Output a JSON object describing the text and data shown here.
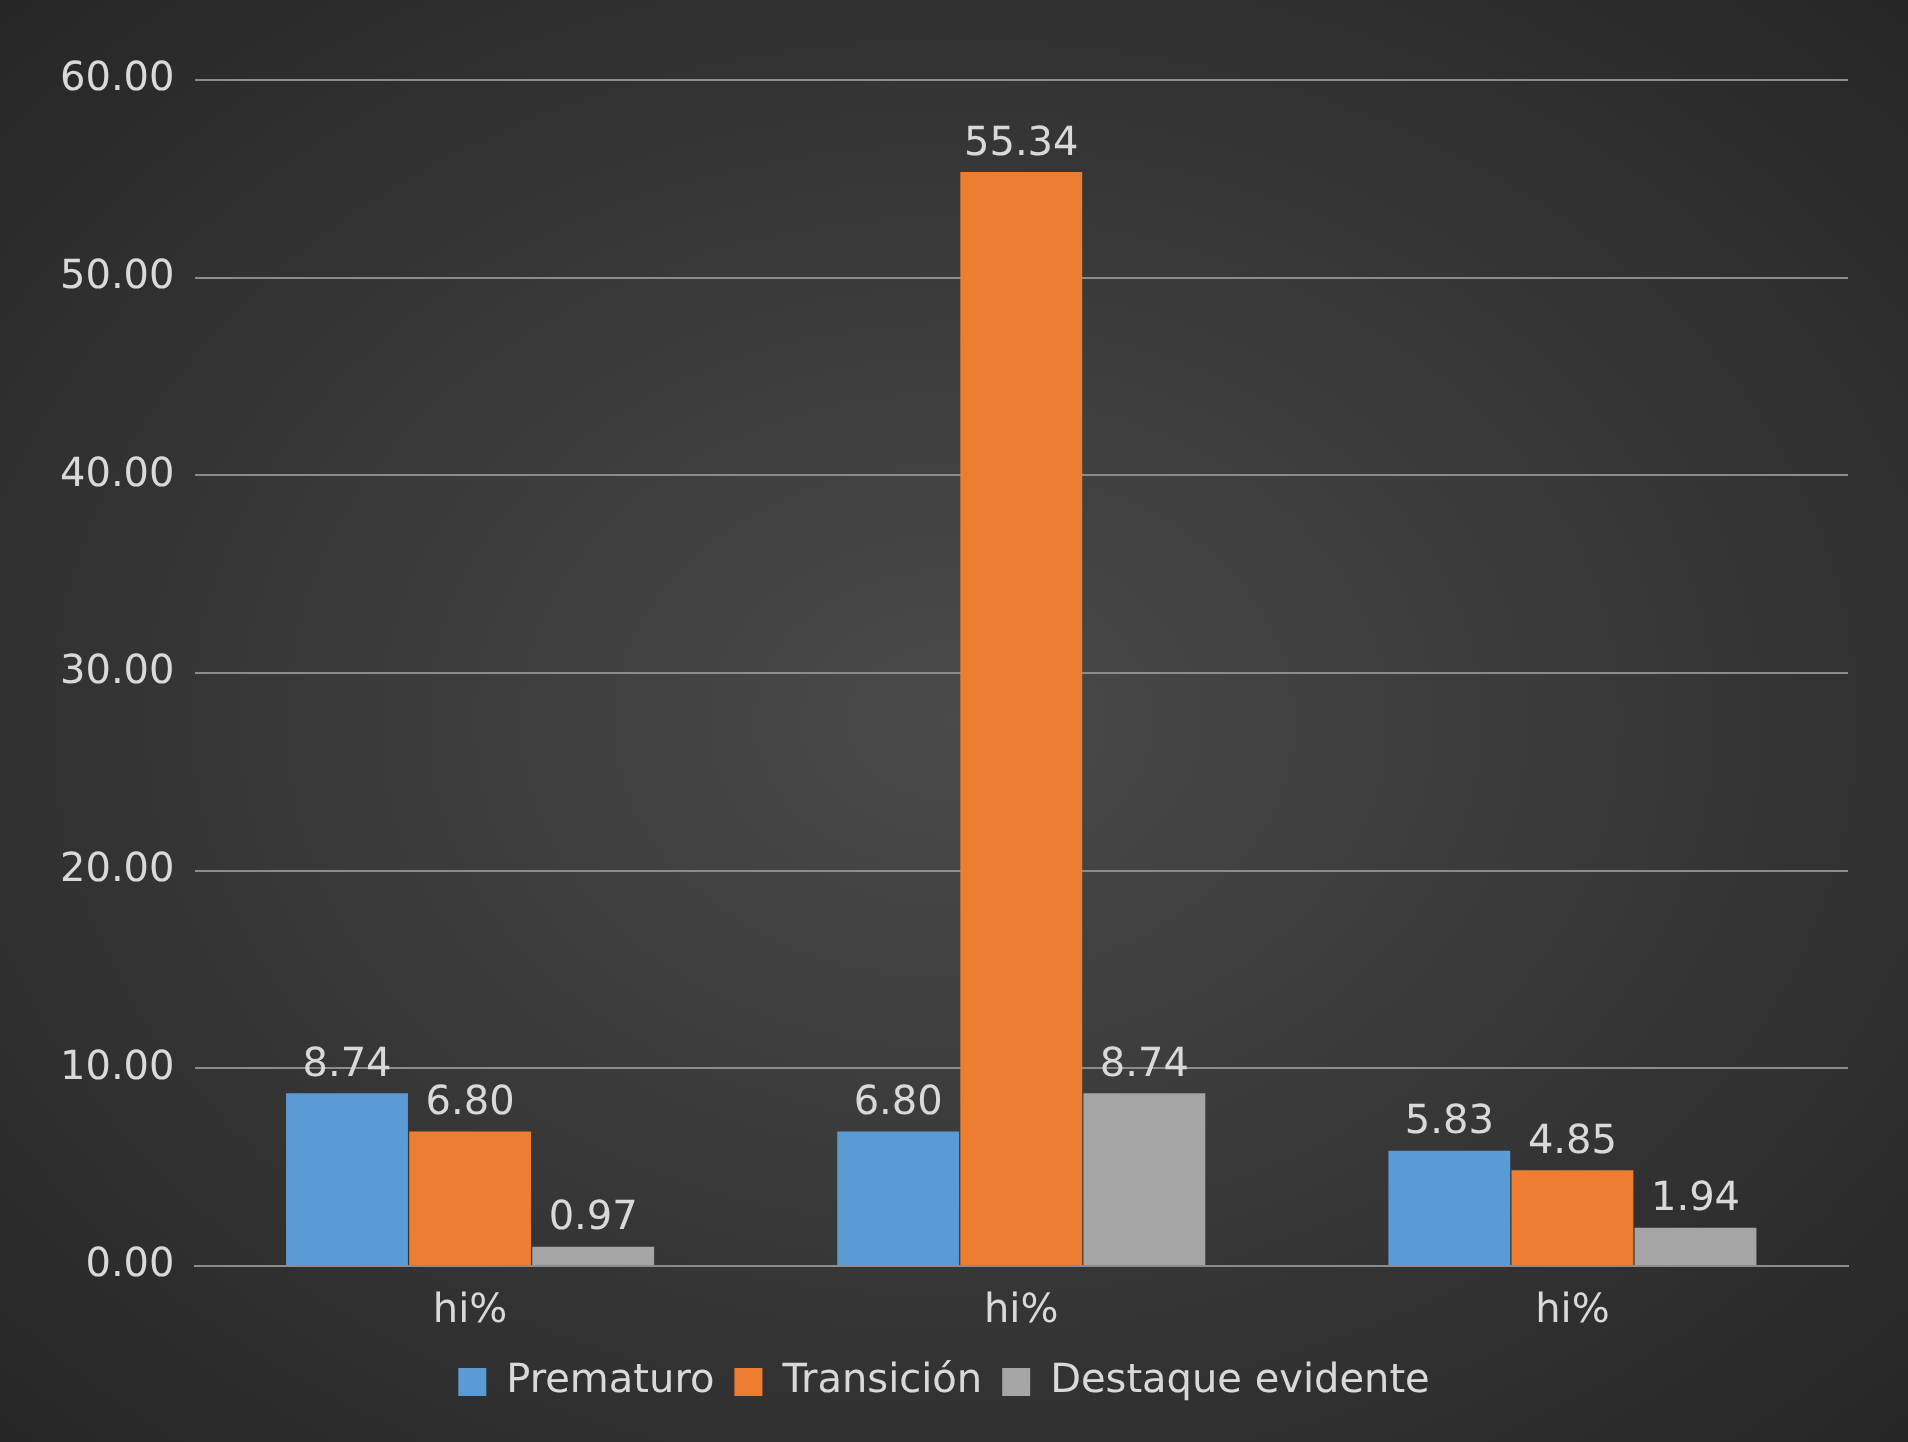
{
  "chart_data": {
    "type": "bar",
    "categories": [
      "hi%",
      "hi%",
      "hi%"
    ],
    "series": [
      {
        "name": "Prematuro",
        "color": "#5b9bd5",
        "values": [
          8.74,
          6.8,
          5.83
        ],
        "value_labels": [
          "8.74",
          "6.80",
          "5.83"
        ]
      },
      {
        "name": "Transición",
        "color": "#ed7d31",
        "values": [
          6.8,
          55.34,
          4.85
        ],
        "value_labels": [
          "6.80",
          "55.34",
          "4.85"
        ]
      },
      {
        "name": "Destaque evidente",
        "color": "#a5a5a5",
        "values": [
          0.97,
          8.74,
          1.94
        ],
        "value_labels": [
          "0.97",
          "8.74",
          "1.94"
        ]
      }
    ],
    "ylim": [
      0,
      60
    ],
    "yticks": [
      {
        "value": 0,
        "label": "0.00"
      },
      {
        "value": 10,
        "label": "10.00"
      },
      {
        "value": 20,
        "label": "20.00"
      },
      {
        "value": 30,
        "label": "30.00"
      },
      {
        "value": 40,
        "label": "40.00"
      },
      {
        "value": 50,
        "label": "50.00"
      },
      {
        "value": 60,
        "label": "60.00"
      }
    ],
    "grid": "y",
    "legend": "bottom"
  }
}
